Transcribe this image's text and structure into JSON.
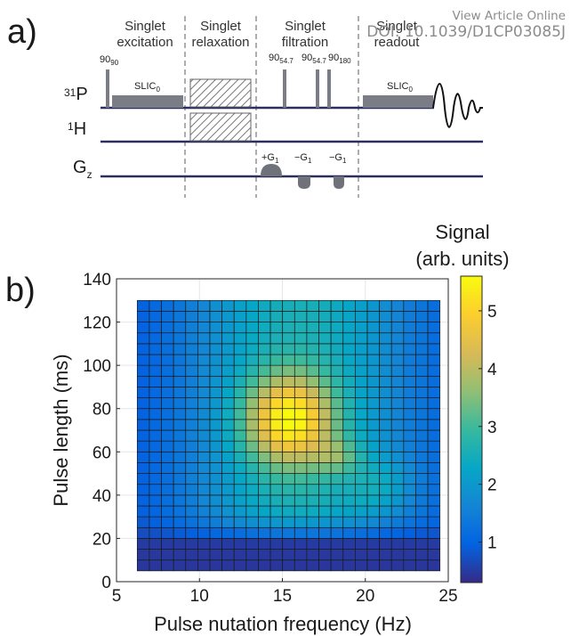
{
  "watermark": {
    "line1": "View Article Online",
    "line2": "DOI: 10.1039/D1CP03085J"
  },
  "panel_a": {
    "label": "a)",
    "blocks": [
      {
        "title": [
          "Singlet",
          "excitation"
        ]
      },
      {
        "title": [
          "Singlet",
          "relaxation"
        ]
      },
      {
        "title": [
          "Singlet",
          "filtration"
        ]
      },
      {
        "title": [
          "Singlet",
          "readout"
        ]
      }
    ],
    "channels": {
      "p31": {
        "sup": "31",
        "base": "P"
      },
      "h1": {
        "sup": "1",
        "base": "H"
      },
      "gz": {
        "base": "G",
        "sub": "z"
      }
    },
    "pulses": {
      "p90_90": {
        "base": "90",
        "sub": "90"
      },
      "p90_547_a": {
        "base": "90",
        "sub": "54.7"
      },
      "p90_547_b": {
        "base": "90",
        "sub": "54.7"
      },
      "p90_180": {
        "base": "90",
        "sub": "180"
      }
    },
    "slic": [
      {
        "base": "SLIC",
        "sub": "0"
      },
      {
        "base": "SLIC",
        "sub": "0"
      }
    ],
    "gradients": {
      "g_plus": {
        "prefix": "+G",
        "sub": "1"
      },
      "g_minus_a": {
        "prefix": "−G",
        "sub": "1"
      },
      "g_minus_b": {
        "prefix": "−G",
        "sub": "1"
      }
    }
  },
  "chart_data": {
    "type": "heatmap",
    "panel_label": "b)",
    "xlabel": "Pulse nutation frequency (Hz)",
    "ylabel": "Pulse length (ms)",
    "xlim": [
      5,
      25
    ],
    "ylim": [
      0,
      140
    ],
    "xticks": [
      5,
      10,
      15,
      20,
      25
    ],
    "yticks": [
      0,
      20,
      40,
      60,
      80,
      100,
      120,
      140
    ],
    "grid": true,
    "x_extent": [
      6.25,
      24.5
    ],
    "y_extent": [
      5,
      130
    ],
    "columns": 25,
    "rows": 25,
    "colorbar": {
      "label_line1": "Signal",
      "label_line2": "(arb. units)",
      "range": [
        0.3,
        5.6
      ],
      "ticks": [
        1,
        2,
        3,
        4,
        5
      ]
    },
    "colormap": "parula",
    "peak": {
      "x": 15.5,
      "y": 70,
      "value": 5.5
    },
    "description_of_values": "signal peaks near 15-16 Hz and 65-80 ms"
  }
}
